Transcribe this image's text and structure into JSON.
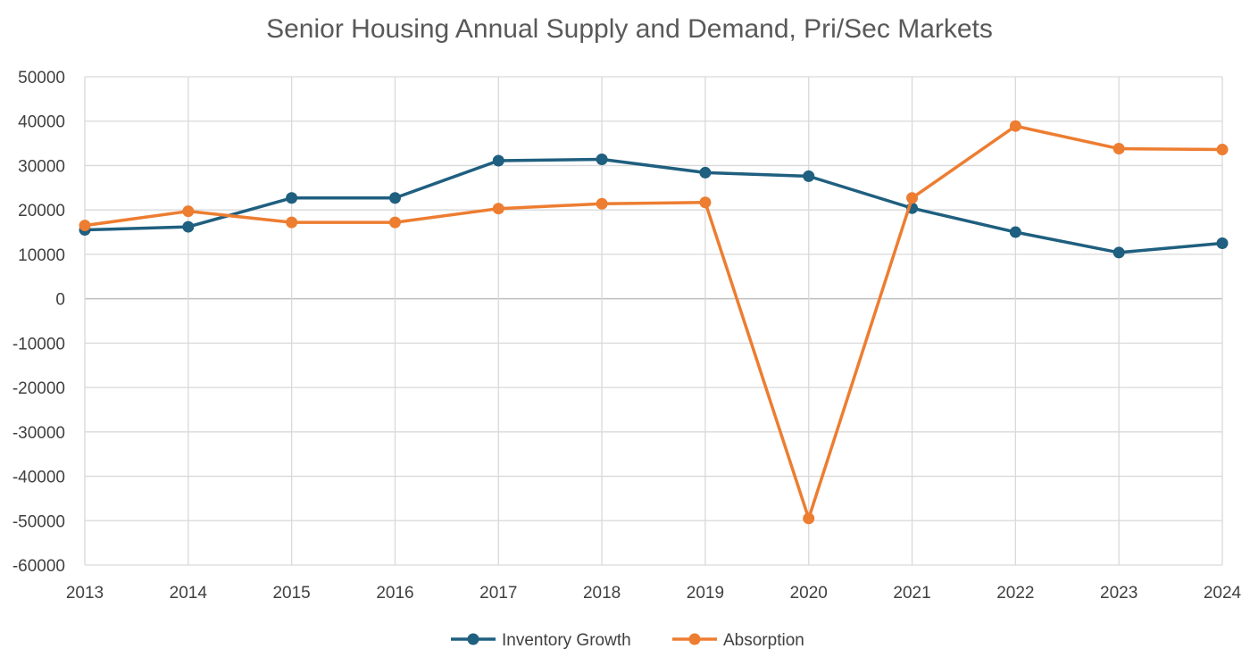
{
  "chart_data": {
    "type": "line",
    "title": "Senior Housing Annual Supply and Demand, Pri/Sec Markets",
    "xlabel": "",
    "ylabel": "",
    "categories": [
      "2013",
      "2014",
      "2015",
      "2016",
      "2017",
      "2018",
      "2019",
      "2020",
      "2021",
      "2022",
      "2023",
      "2024"
    ],
    "ylim": [
      -60000,
      50000
    ],
    "yticks": [
      50000,
      40000,
      30000,
      20000,
      10000,
      0,
      -10000,
      -20000,
      -30000,
      -40000,
      -50000,
      -60000
    ],
    "grid": "on",
    "legend": "bottom",
    "series": [
      {
        "name": "Inventory Growth",
        "color": "#1f5f7f",
        "values": [
          15500,
          16200,
          22700,
          22700,
          31100,
          31400,
          28400,
          27600,
          20400,
          15000,
          10400,
          12500
        ]
      },
      {
        "name": "Absorption",
        "color": "#ed7d31",
        "values": [
          16500,
          19700,
          17200,
          17200,
          20300,
          21400,
          21700,
          -49500,
          22700,
          38900,
          33800,
          33600
        ]
      }
    ]
  }
}
